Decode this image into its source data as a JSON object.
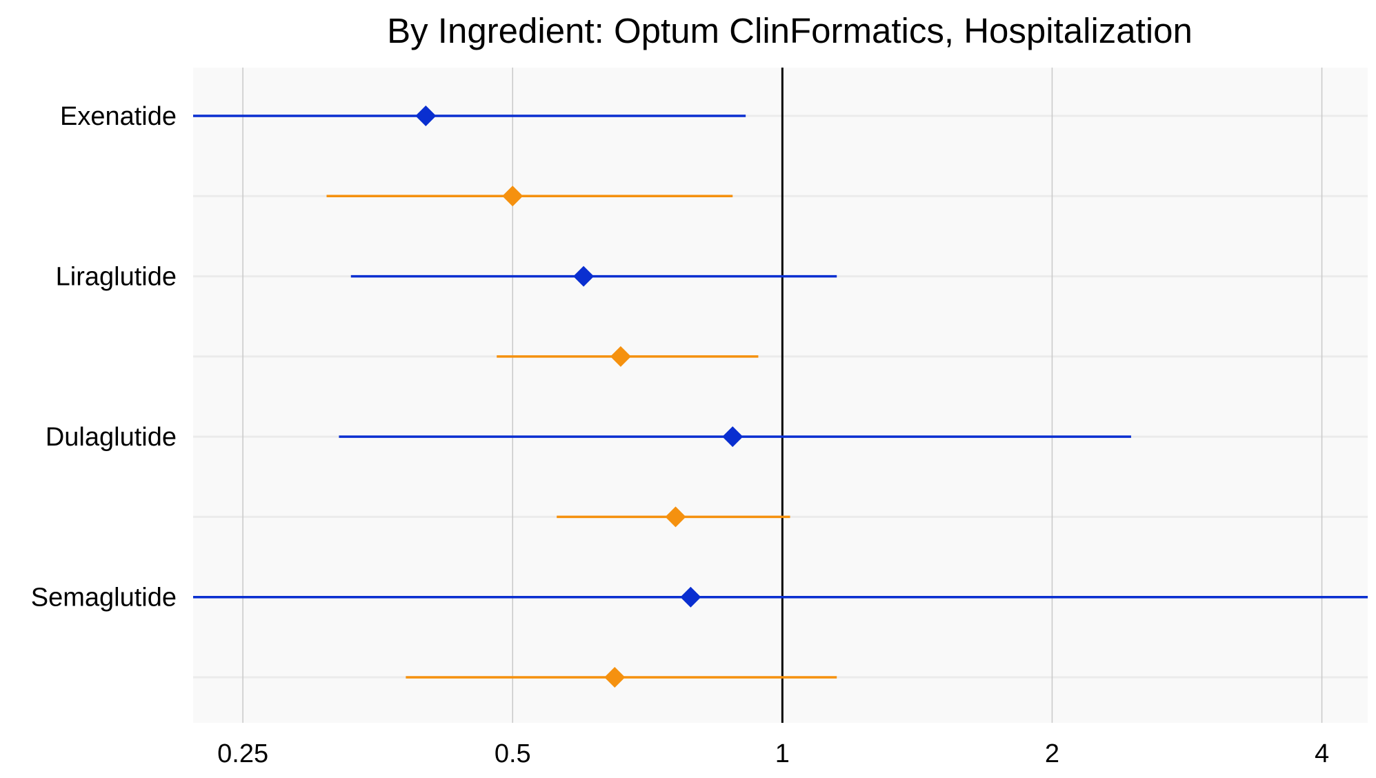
{
  "chart_data": {
    "type": "forest",
    "title": "By Ingredient: Optum ClinFormatics, Hospitalization",
    "xlabel": "",
    "ylabel": "",
    "x_scale": "log2",
    "xlim": [
      0.22,
      4.5
    ],
    "x_ticks": [
      0.25,
      0.5,
      1,
      2,
      4
    ],
    "x_tick_labels": [
      "0.25",
      "0.5",
      "1",
      "2",
      "4"
    ],
    "reference_line": 1,
    "grid": true,
    "legend": "none",
    "series_colors": {
      "blue": "#0a2fd0",
      "orange": "#f5910f"
    },
    "rows": [
      {
        "label": "Exenatide",
        "estimate": 0.4,
        "lower": 0.22,
        "upper": 0.91,
        "color": "blue"
      },
      {
        "label": "",
        "estimate": 0.5,
        "lower": 0.31,
        "upper": 0.88,
        "color": "orange"
      },
      {
        "label": "Liraglutide",
        "estimate": 0.6,
        "lower": 0.33,
        "upper": 1.15,
        "color": "blue"
      },
      {
        "label": "",
        "estimate": 0.66,
        "lower": 0.48,
        "upper": 0.94,
        "color": "orange"
      },
      {
        "label": "Dulaglutide",
        "estimate": 0.88,
        "lower": 0.32,
        "upper": 2.45,
        "color": "blue"
      },
      {
        "label": "",
        "estimate": 0.76,
        "lower": 0.56,
        "upper": 1.02,
        "color": "orange"
      },
      {
        "label": "Semaglutide",
        "estimate": 0.79,
        "lower": 0.22,
        "upper": 4.5,
        "color": "blue"
      },
      {
        "label": "",
        "estimate": 0.65,
        "lower": 0.38,
        "upper": 1.15,
        "color": "orange"
      }
    ]
  }
}
